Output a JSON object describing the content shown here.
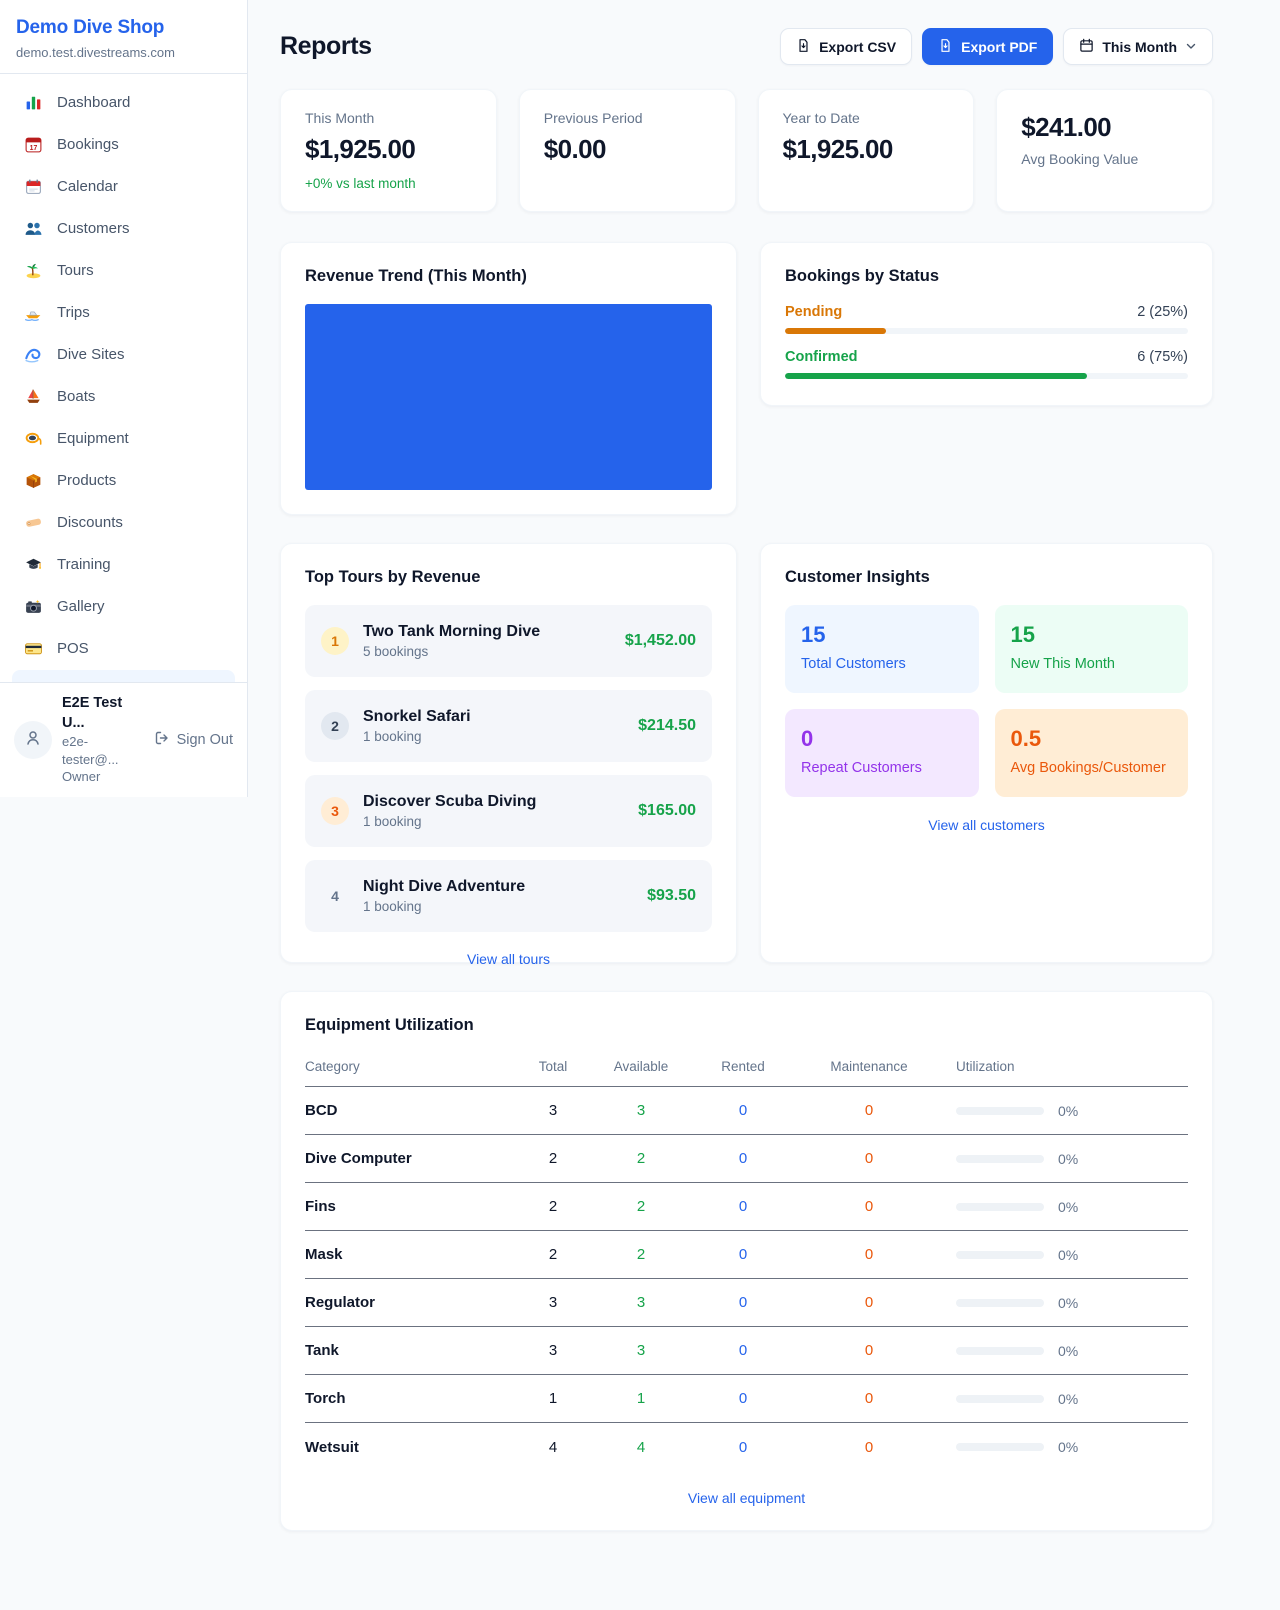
{
  "colors": {
    "accent": "#2563eb",
    "green": "#16a34a",
    "pending_orange": "#d97706",
    "maintenance_orange": "#ea580c",
    "purple": "#9333ea"
  },
  "sidebar": {
    "brand": {
      "name": "Demo Dive Shop",
      "domain": "demo.test.divestreams.com"
    },
    "nav": [
      {
        "icon": "dashboard-icon",
        "label": "Dashboard"
      },
      {
        "icon": "bookings-icon",
        "label": "Bookings"
      },
      {
        "icon": "calendar-icon",
        "label": "Calendar"
      },
      {
        "icon": "customers-icon",
        "label": "Customers"
      },
      {
        "icon": "tours-icon",
        "label": "Tours"
      },
      {
        "icon": "trips-icon",
        "label": "Trips"
      },
      {
        "icon": "dive-sites-icon",
        "label": "Dive Sites"
      },
      {
        "icon": "boats-icon",
        "label": "Boats"
      },
      {
        "icon": "equipment-icon",
        "label": "Equipment"
      },
      {
        "icon": "products-icon",
        "label": "Products"
      },
      {
        "icon": "discounts-icon",
        "label": "Discounts"
      },
      {
        "icon": "training-icon",
        "label": "Training"
      },
      {
        "icon": "gallery-icon",
        "label": "Gallery"
      },
      {
        "icon": "pos-icon",
        "label": "POS"
      }
    ],
    "user": {
      "name": "E2E Test U...",
      "email": "e2e-tester@...",
      "role": "Owner",
      "sign_out": "Sign Out"
    }
  },
  "header": {
    "title": "Reports",
    "export_csv": "Export CSV",
    "export_pdf": "Export PDF",
    "period": "This Month"
  },
  "stats": [
    {
      "label": "This Month",
      "value": "$1,925.00",
      "delta": "+0% vs last month",
      "layout": "label-first"
    },
    {
      "label": "Previous Period",
      "value": "$0.00",
      "delta": "",
      "layout": "label-first"
    },
    {
      "label": "Year to Date",
      "value": "$1,925.00",
      "delta": "",
      "layout": "label-first"
    },
    {
      "label": "Avg Booking Value",
      "value": "$241.00",
      "delta": "",
      "layout": "value-first"
    }
  ],
  "revenue_trend": {
    "title": "Revenue Trend (This Month)",
    "chart_data": {
      "type": "bar",
      "values": [
        1925
      ],
      "bar_color": "#2563eb",
      "note_visible_labels": "none"
    }
  },
  "bookings_by_status": {
    "title": "Bookings by Status",
    "rows": [
      {
        "label": "Pending",
        "value": "2 (25%)",
        "pct": 25,
        "color": "#d97706"
      },
      {
        "label": "Confirmed",
        "value": "6 (75%)",
        "pct": 75,
        "color": "#16a34a"
      }
    ]
  },
  "top_tours": {
    "title": "Top Tours by Revenue",
    "items": [
      {
        "rank": "1",
        "name": "Two Tank Morning Dive",
        "bookings": "5 bookings",
        "amount": "$1,452.00",
        "badge": "gold"
      },
      {
        "rank": "2",
        "name": "Snorkel Safari",
        "bookings": "1 booking",
        "amount": "$214.50",
        "badge": "silver"
      },
      {
        "rank": "3",
        "name": "Discover Scuba Diving",
        "bookings": "1 booking",
        "amount": "$165.00",
        "badge": "bronze"
      },
      {
        "rank": "4",
        "name": "Night Dive Adventure",
        "bookings": "1 booking",
        "amount": "$93.50",
        "badge": "plain"
      }
    ],
    "view_all": "View all tours"
  },
  "customer_insights": {
    "title": "Customer Insights",
    "tiles": [
      {
        "value": "15",
        "label": "Total Customers",
        "theme": "blue"
      },
      {
        "value": "15",
        "label": "New This Month",
        "theme": "green"
      },
      {
        "value": "0",
        "label": "Repeat Customers",
        "theme": "purple"
      },
      {
        "value": "0.5",
        "label": "Avg Bookings/Customer",
        "theme": "orange"
      }
    ],
    "view_all": "View all customers"
  },
  "equipment": {
    "title": "Equipment Utilization",
    "columns": [
      "Category",
      "Total",
      "Available",
      "Rented",
      "Maintenance",
      "Utilization"
    ],
    "rows": [
      {
        "category": "BCD",
        "total": "3",
        "available": "3",
        "rented": "0",
        "maintenance": "0",
        "utilization": "0%"
      },
      {
        "category": "Dive Computer",
        "total": "2",
        "available": "2",
        "rented": "0",
        "maintenance": "0",
        "utilization": "0%"
      },
      {
        "category": "Fins",
        "total": "2",
        "available": "2",
        "rented": "0",
        "maintenance": "0",
        "utilization": "0%"
      },
      {
        "category": "Mask",
        "total": "2",
        "available": "2",
        "rented": "0",
        "maintenance": "0",
        "utilization": "0%"
      },
      {
        "category": "Regulator",
        "total": "3",
        "available": "3",
        "rented": "0",
        "maintenance": "0",
        "utilization": "0%"
      },
      {
        "category": "Tank",
        "total": "3",
        "available": "3",
        "rented": "0",
        "maintenance": "0",
        "utilization": "0%"
      },
      {
        "category": "Torch",
        "total": "1",
        "available": "1",
        "rented": "0",
        "maintenance": "0",
        "utilization": "0%"
      },
      {
        "category": "Wetsuit",
        "total": "4",
        "available": "4",
        "rented": "0",
        "maintenance": "0",
        "utilization": "0%"
      }
    ],
    "view_all": "View all equipment"
  }
}
